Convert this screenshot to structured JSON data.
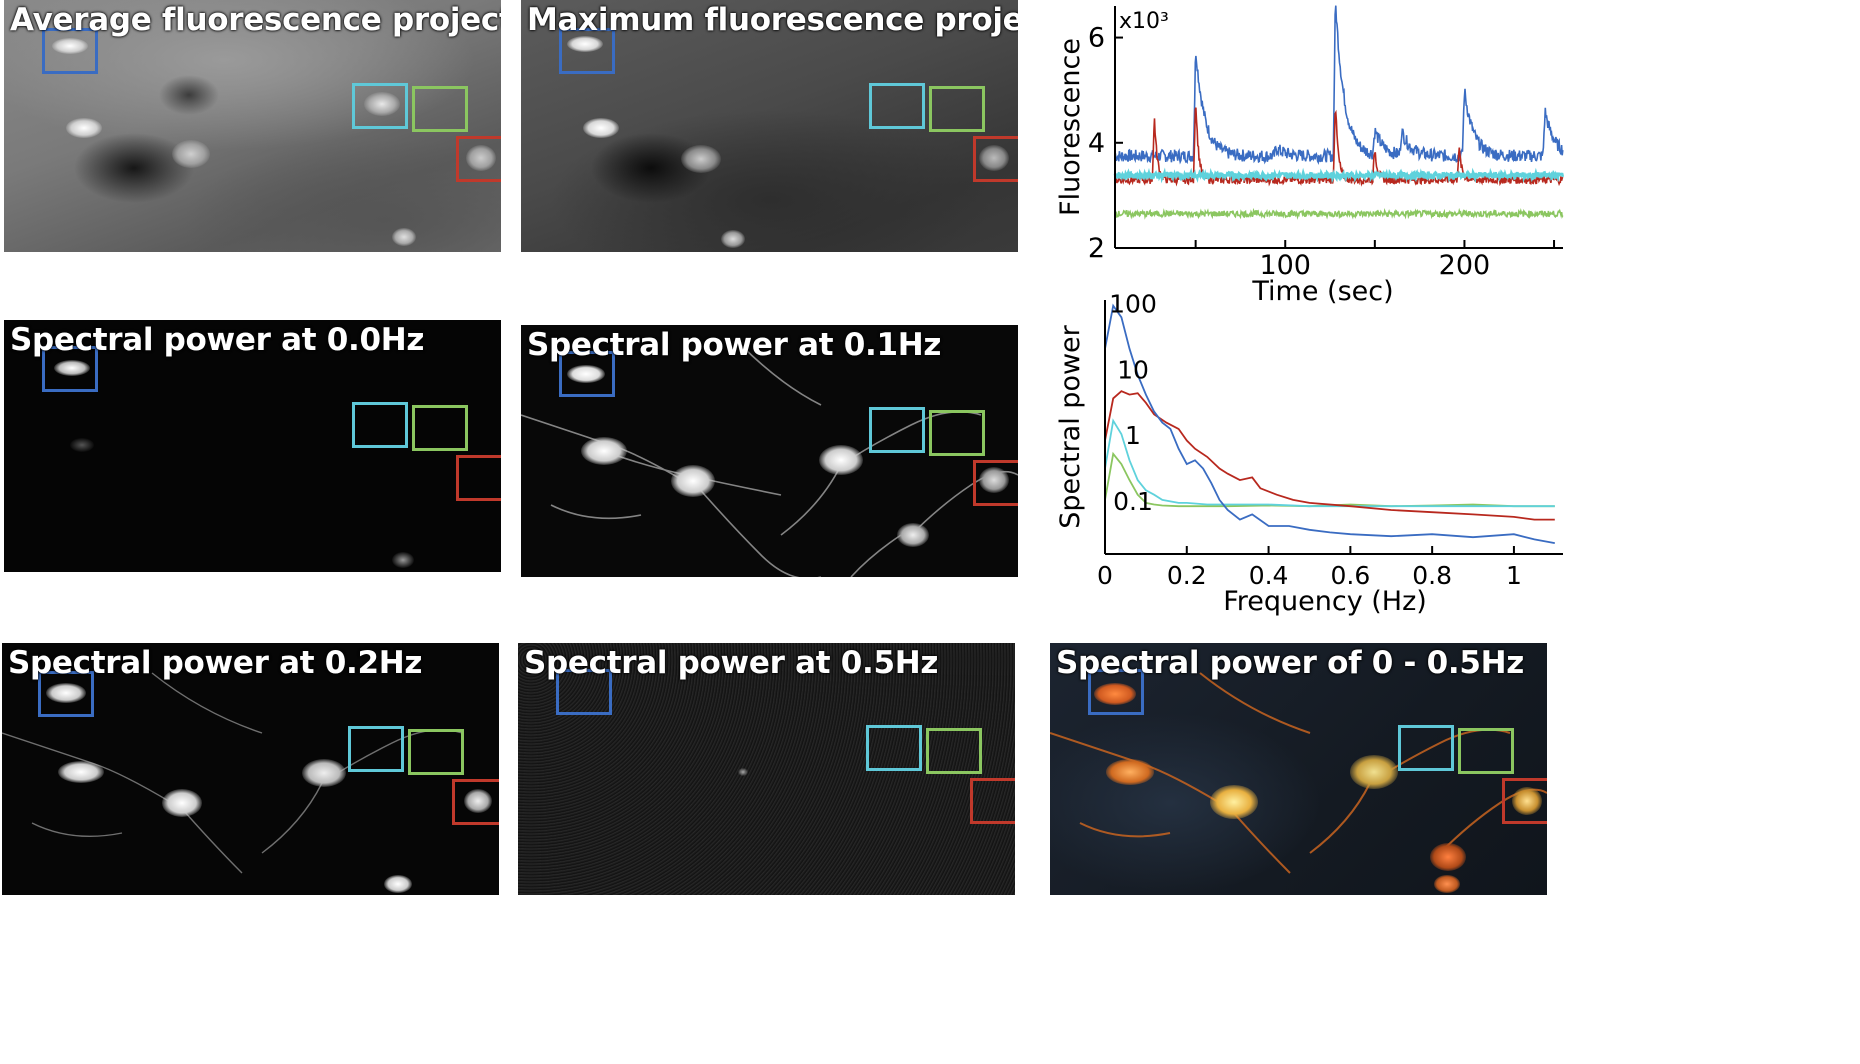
{
  "colors": {
    "roi_blue": "#3a6cc2",
    "roi_cyan": "#5fc8d8",
    "roi_green": "#8bc660",
    "roi_red": "#c0392b",
    "trace_blue": "#3a6cc2",
    "trace_cyan": "#5fd2dc",
    "trace_green": "#8bc660",
    "trace_red": "#b8281e"
  },
  "panels": {
    "avg": {
      "title": "Average fluorescence projection"
    },
    "max": {
      "title": "Maximum fluorescence  projection"
    },
    "sp00": {
      "title": "Spectral power at 0.0Hz"
    },
    "sp01": {
      "title": "Spectral power at 0.1Hz"
    },
    "sp02": {
      "title": "Spectral power at 0.2Hz"
    },
    "sp05": {
      "title": "Spectral power at 0.5Hz"
    },
    "sp005": {
      "title": "Spectral power of 0 - 0.5Hz"
    }
  },
  "chart_data": [
    {
      "type": "line",
      "xlabel": "Time (sec)",
      "ylabel": "Fluorescence",
      "y_multiplier": "x10³",
      "xlim": [
        5,
        255
      ],
      "ylim": [
        2,
        6.6
      ],
      "xticks": [
        100,
        200
      ],
      "yticks": [
        2,
        4,
        6
      ],
      "series": [
        {
          "color": "blue",
          "baseline": 3.75,
          "noise": 0.12,
          "peaks": [
            [
              50,
              5.8
            ],
            [
              95,
              3.9
            ],
            [
              128,
              6.7
            ],
            [
              150,
              4.2
            ],
            [
              165,
              4.2
            ],
            [
              200,
              5.0
            ],
            [
              245,
              4.6
            ]
          ]
        },
        {
          "color": "red",
          "baseline": 3.3,
          "noise": 0.08,
          "peaks": [
            [
              27,
              4.5
            ],
            [
              50,
              4.9
            ],
            [
              128,
              4.8
            ],
            [
              150,
              3.9
            ],
            [
              197,
              3.9
            ]
          ]
        },
        {
          "color": "cyan",
          "baseline": 3.38,
          "noise": 0.06,
          "peaks": []
        },
        {
          "color": "green",
          "baseline": 2.65,
          "noise": 0.06,
          "peaks": []
        }
      ]
    },
    {
      "type": "line",
      "xlabel": "Frequency (Hz)",
      "ylabel": "Spectral power",
      "yscale": "log",
      "xlim": [
        0,
        1.12
      ],
      "ylim": [
        0.015,
        110
      ],
      "xticks": [
        0,
        0.2,
        0.4,
        0.6,
        0.8,
        1
      ],
      "yticks": [
        0.1,
        1,
        10,
        100
      ],
      "series": [
        {
          "color": "blue",
          "x": [
            0,
            0.02,
            0.04,
            0.06,
            0.08,
            0.1,
            0.12,
            0.14,
            0.16,
            0.18,
            0.2,
            0.22,
            0.24,
            0.26,
            0.28,
            0.3,
            0.33,
            0.36,
            0.4,
            0.45,
            0.5,
            0.55,
            0.6,
            0.7,
            0.8,
            0.9,
            1.0,
            1.05,
            1.1
          ],
          "y": [
            20,
            90,
            60,
            20,
            8,
            4,
            2.2,
            1.5,
            1.2,
            0.6,
            0.35,
            0.4,
            0.3,
            0.18,
            0.1,
            0.07,
            0.05,
            0.06,
            0.04,
            0.04,
            0.035,
            0.032,
            0.03,
            0.028,
            0.03,
            0.027,
            0.03,
            0.025,
            0.022
          ]
        },
        {
          "color": "red",
          "x": [
            0,
            0.02,
            0.04,
            0.06,
            0.08,
            0.1,
            0.12,
            0.15,
            0.18,
            0.2,
            0.22,
            0.25,
            0.28,
            0.3,
            0.33,
            0.36,
            0.38,
            0.42,
            0.46,
            0.5,
            0.6,
            0.7,
            0.8,
            0.9,
            1.0,
            1.05,
            1.1
          ],
          "y": [
            0.8,
            3.5,
            4.5,
            4.0,
            4.2,
            3.0,
            2.0,
            1.5,
            1.2,
            0.8,
            0.6,
            0.45,
            0.3,
            0.25,
            0.2,
            0.22,
            0.15,
            0.12,
            0.1,
            0.09,
            0.08,
            0.07,
            0.065,
            0.06,
            0.055,
            0.05,
            0.05
          ]
        },
        {
          "color": "cyan",
          "x": [
            0,
            0.02,
            0.04,
            0.06,
            0.08,
            0.1,
            0.12,
            0.14,
            0.18,
            0.2,
            0.25,
            0.3,
            0.4,
            0.5,
            0.6,
            0.7,
            0.8,
            0.9,
            1.0,
            1.1
          ],
          "y": [
            0.3,
            1.6,
            1.0,
            0.4,
            0.2,
            0.14,
            0.12,
            0.1,
            0.09,
            0.09,
            0.085,
            0.085,
            0.085,
            0.08,
            0.08,
            0.08,
            0.08,
            0.08,
            0.08,
            0.08
          ]
        },
        {
          "color": "green",
          "x": [
            0,
            0.02,
            0.04,
            0.06,
            0.08,
            0.1,
            0.12,
            0.14,
            0.18,
            0.2,
            0.25,
            0.3,
            0.4,
            0.5,
            0.6,
            0.7,
            0.8,
            0.9,
            1.0,
            1.1
          ],
          "y": [
            0.1,
            0.5,
            0.35,
            0.2,
            0.12,
            0.09,
            0.085,
            0.082,
            0.08,
            0.08,
            0.08,
            0.08,
            0.082,
            0.08,
            0.085,
            0.08,
            0.082,
            0.085,
            0.08,
            0.08
          ]
        }
      ]
    }
  ]
}
